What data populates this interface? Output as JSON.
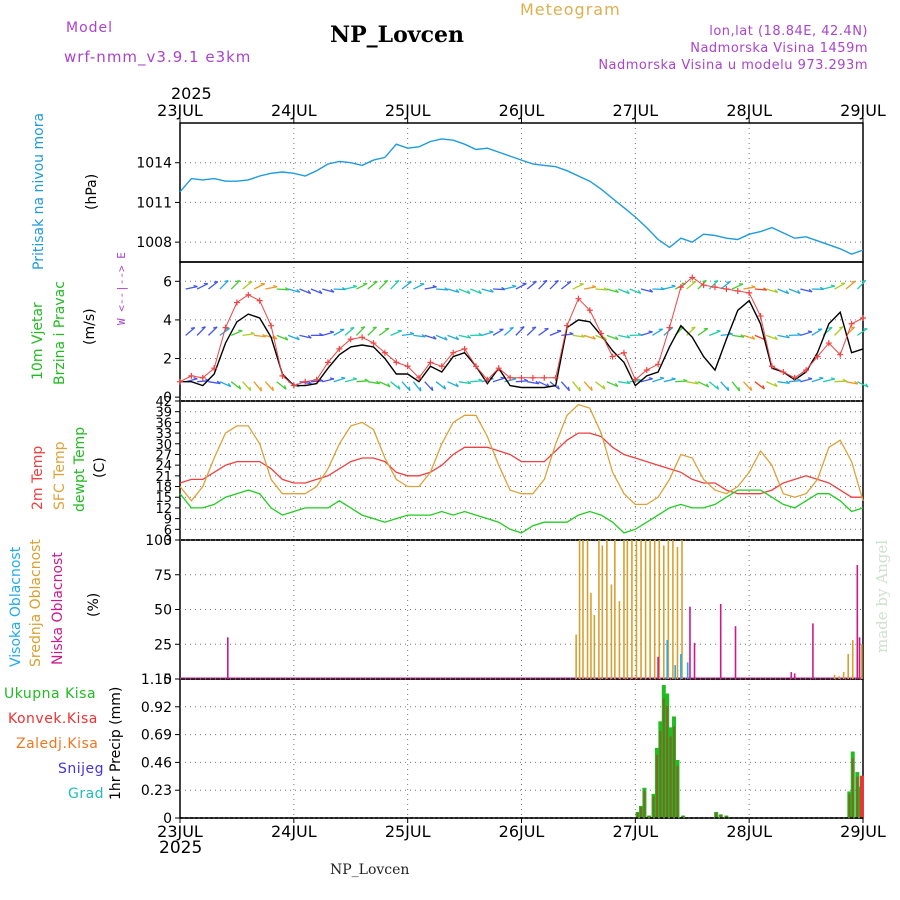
{
  "header": {
    "model_label": "Model",
    "model_name": "wrf-nmm_v3.9.1  e3km",
    "station": "NP_Lovcen",
    "product": "Meteogram",
    "lonlat": "lon,lat (18.84E, 42.4N)",
    "altitude": "Nadmorska Visina 1459m",
    "model_altitude": "Nadmorska Visina u modelu 973.293m",
    "footer_station": "NP_Lovcen",
    "credit": "made by Angel",
    "year_top": "2025",
    "year_bottom": "2025"
  },
  "colors": {
    "pressure": "#1e9bdc",
    "temp2m": "#ee4040",
    "sfc": "#dca33c",
    "dewpt": "#22cc22",
    "high_cloud": "#22aaee",
    "mid_cloud": "#d8a030",
    "low_cloud": "#cc1a8c",
    "total_precip": "#22bb22",
    "conv_precip": "#ee3333",
    "frozen_precip": "#ee7722",
    "snow": "#4433dd",
    "graupel": "#22bbbb",
    "purple_text": "#aa44cc"
  },
  "panel_labels": {
    "pressure": {
      "title": "Pritisak na nivou mora",
      "unit": "(hPa)"
    },
    "wind": {
      "line1": "10m Vjetar",
      "line2": "Brzina i Pravac",
      "unit": "(m/s)",
      "compass": "W <--|--> E"
    },
    "temp": {
      "t2m": "2m Temp",
      "sfc": "SFC Temp",
      "dew": "dewpt Temp",
      "unit": "(C)"
    },
    "cloud": {
      "high": "Visoka Oblacnost",
      "mid": "Srednja Oblacnost",
      "low": "Niska Oblacnost",
      "unit": "(%)"
    },
    "precip": {
      "unit": "1hr Precip (mm)",
      "legend": [
        "Ukupna Kisa",
        "Konvek.Kisa",
        "Zaledj.Kisa",
        "Snijeg",
        "Grad"
      ]
    }
  },
  "chart_data": [
    {
      "type": "line",
      "title": "Pritisak na nivou mora",
      "ylabel": "(hPa)",
      "ylim": [
        1006.5,
        1017
      ],
      "yticks": [
        "1008",
        "1011",
        "1014"
      ],
      "x_categories": [
        "23JUL",
        "24JUL",
        "25JUL",
        "26JUL",
        "27JUL",
        "28JUL",
        "29JUL"
      ],
      "x": [
        0,
        0.1,
        0.2,
        0.3,
        0.4,
        0.5,
        0.6,
        0.7,
        0.8,
        0.9,
        1.0,
        1.1,
        1.2,
        1.3,
        1.4,
        1.5,
        1.6,
        1.7,
        1.8,
        1.9,
        2.0,
        2.1,
        2.2,
        2.3,
        2.4,
        2.5,
        2.6,
        2.7,
        2.8,
        2.9,
        3.0,
        3.1,
        3.2,
        3.3,
        3.4,
        3.5,
        3.6,
        3.7,
        3.8,
        3.9,
        4.0,
        4.1,
        4.2,
        4.3,
        4.4,
        4.5,
        4.6,
        4.7,
        4.8,
        4.9,
        5.0,
        5.1,
        5.2,
        5.3,
        5.4,
        5.5,
        5.6,
        5.7,
        5.8,
        5.9,
        6.0
      ],
      "series": [
        {
          "name": "MSLP",
          "values": [
            1011.8,
            1012.8,
            1012.7,
            1012.8,
            1012.6,
            1012.6,
            1012.7,
            1013.0,
            1013.2,
            1013.3,
            1013.2,
            1013.0,
            1013.4,
            1013.9,
            1014.1,
            1014.0,
            1013.8,
            1014.2,
            1014.4,
            1015.4,
            1015.1,
            1015.2,
            1015.6,
            1015.8,
            1015.7,
            1015.4,
            1015.0,
            1015.1,
            1014.8,
            1014.5,
            1014.2,
            1013.9,
            1013.8,
            1013.7,
            1013.4,
            1013.0,
            1012.6,
            1012.0,
            1011.3,
            1010.6,
            1009.9,
            1009.1,
            1008.2,
            1007.6,
            1008.3,
            1008.0,
            1008.6,
            1008.5,
            1008.3,
            1008.2,
            1008.6,
            1008.8,
            1009.1,
            1008.7,
            1008.3,
            1008.4,
            1008.1,
            1007.8,
            1007.5,
            1007.1,
            1007.4
          ]
        }
      ]
    },
    {
      "type": "line",
      "title": "10m Vjetar Brzina i Pravac",
      "ylabel": "(m/s)",
      "ylim": [
        -0.2,
        7
      ],
      "yticks": [
        "0",
        "2",
        "4",
        "6"
      ],
      "x_categories": [
        "23JUL",
        "24JUL",
        "25JUL",
        "26JUL",
        "27JUL",
        "28JUL",
        "29JUL"
      ],
      "x": [
        0,
        0.1,
        0.2,
        0.3,
        0.4,
        0.5,
        0.6,
        0.7,
        0.8,
        0.9,
        1.0,
        1.1,
        1.2,
        1.3,
        1.4,
        1.5,
        1.6,
        1.7,
        1.8,
        1.9,
        2.0,
        2.1,
        2.2,
        2.3,
        2.4,
        2.5,
        2.6,
        2.7,
        2.8,
        2.9,
        3.0,
        3.1,
        3.2,
        3.3,
        3.4,
        3.5,
        3.6,
        3.7,
        3.8,
        3.9,
        4.0,
        4.1,
        4.2,
        4.3,
        4.4,
        4.5,
        4.6,
        4.7,
        4.8,
        4.9,
        5.0,
        5.1,
        5.2,
        5.3,
        5.4,
        5.5,
        5.6,
        5.7,
        5.8,
        5.9,
        6.0
      ],
      "series": [
        {
          "name": "Brzina (model)",
          "values": [
            0.8,
            0.8,
            0.6,
            1.2,
            2.8,
            3.9,
            4.3,
            4.1,
            3.1,
            1.2,
            0.6,
            0.6,
            0.7,
            1.5,
            2.2,
            2.6,
            2.7,
            2.6,
            2.0,
            1.2,
            1.2,
            0.8,
            1.6,
            1.3,
            2.1,
            2.3,
            1.6,
            0.7,
            1.5,
            0.6,
            0.5,
            0.5,
            0.5,
            0.6,
            3.6,
            4.0,
            3.9,
            3.2,
            2.4,
            1.8,
            0.6,
            1.1,
            1.3,
            2.6,
            3.7,
            3.1,
            2.1,
            1.4,
            3.0,
            4.5,
            5.0,
            3.8,
            1.5,
            1.3,
            0.9,
            1.3,
            2.3,
            3.8,
            4.4,
            2.3,
            2.5
          ]
        },
        {
          "name": "Udari (+)",
          "values": [
            0.8,
            1.1,
            1.0,
            1.5,
            3.6,
            4.9,
            5.3,
            5.0,
            3.7,
            1.1,
            0.6,
            0.8,
            0.9,
            1.8,
            2.5,
            3.0,
            3.1,
            2.8,
            2.3,
            1.8,
            1.6,
            1.0,
            1.8,
            1.6,
            2.3,
            2.5,
            1.6,
            0.9,
            1.5,
            1.0,
            1.0,
            1.0,
            1.0,
            1.0,
            3.7,
            5.1,
            4.5,
            3.3,
            2.1,
            2.3,
            0.9,
            1.4,
            1.7,
            3.6,
            5.7,
            6.2,
            5.8,
            5.7,
            5.6,
            5.5,
            5.4,
            4.2,
            1.6,
            1.3,
            1.0,
            1.4,
            2.1,
            2.8,
            2.2,
            3.8,
            4.1
          ]
        }
      ],
      "wind_rows": [
        "5.6",
        "3.2",
        "0.8"
      ]
    },
    {
      "type": "line",
      "title": "2m Temp / SFC Temp / dewpt Temp",
      "ylabel": "(C)",
      "ylim": [
        3,
        42
      ],
      "yticks": [
        "3",
        "6",
        "9",
        "12",
        "15",
        "18",
        "21",
        "24",
        "27",
        "30",
        "33",
        "36",
        "39",
        "42"
      ],
      "x_categories": [
        "23JUL",
        "24JUL",
        "25JUL",
        "26JUL",
        "27JUL",
        "28JUL",
        "29JUL"
      ],
      "x": [
        0,
        0.1,
        0.2,
        0.3,
        0.4,
        0.5,
        0.6,
        0.7,
        0.8,
        0.9,
        1.0,
        1.1,
        1.2,
        1.3,
        1.4,
        1.5,
        1.6,
        1.7,
        1.8,
        1.9,
        2.0,
        2.1,
        2.2,
        2.3,
        2.4,
        2.5,
        2.6,
        2.7,
        2.8,
        2.9,
        3.0,
        3.1,
        3.2,
        3.3,
        3.4,
        3.5,
        3.6,
        3.7,
        3.8,
        3.9,
        4.0,
        4.1,
        4.2,
        4.3,
        4.4,
        4.5,
        4.6,
        4.7,
        4.8,
        4.9,
        5.0,
        5.1,
        5.2,
        5.3,
        5.4,
        5.5,
        5.6,
        5.7,
        5.8,
        5.9,
        6.0
      ],
      "series": [
        {
          "name": "2m Temp",
          "values": [
            19,
            20,
            20,
            22,
            24,
            25,
            25,
            25,
            23,
            20,
            19,
            19,
            20,
            21,
            23,
            25,
            26,
            26,
            25,
            22,
            21,
            21,
            22,
            24,
            27,
            29,
            29,
            29,
            28,
            27,
            25,
            25,
            25,
            28,
            31,
            33,
            33,
            32,
            29,
            27,
            26,
            25,
            24,
            23,
            22,
            20,
            19,
            19,
            17,
            16,
            16,
            16,
            17,
            19,
            20,
            21,
            20,
            19,
            17,
            15,
            15
          ]
        },
        {
          "name": "SFC Temp",
          "values": [
            18,
            14,
            18,
            26,
            33,
            35,
            35,
            30,
            20,
            16,
            16,
            16,
            18,
            23,
            30,
            35,
            36,
            34,
            26,
            20,
            18,
            18,
            22,
            30,
            36,
            38,
            38,
            32,
            24,
            17,
            16,
            16,
            20,
            30,
            38,
            41,
            40,
            33,
            22,
            16,
            13,
            13,
            15,
            20,
            27,
            26,
            20,
            17,
            16,
            18,
            22,
            28,
            24,
            16,
            15,
            16,
            20,
            29,
            31,
            25,
            14
          ]
        },
        {
          "name": "dewpt Temp",
          "values": [
            16,
            12,
            12,
            13,
            15,
            16,
            17,
            16,
            12,
            10,
            11,
            12,
            12,
            12,
            14,
            12,
            10,
            9,
            8,
            9,
            10,
            10,
            10,
            11,
            10,
            11,
            10,
            9,
            8,
            6,
            5,
            7,
            8,
            8,
            8,
            10,
            11,
            10,
            8,
            5,
            6,
            8,
            10,
            12,
            13,
            12,
            12,
            13,
            15,
            17,
            17,
            17,
            15,
            13,
            12,
            14,
            16,
            16,
            14,
            11,
            12
          ]
        }
      ]
    },
    {
      "type": "bar",
      "title": "Visoka / Srednja / Niska Oblacnost",
      "ylabel": "(%)",
      "ylim": [
        0,
        100
      ],
      "yticks": [
        "0",
        "25",
        "50",
        "75",
        "100"
      ],
      "x_categories": [
        "23JUL",
        "24JUL",
        "25JUL",
        "26JUL",
        "27JUL",
        "28JUL",
        "29JUL"
      ],
      "series": [
        {
          "name": "Srednja Oblacnost",
          "x": [
            3.48,
            3.51,
            3.54,
            3.58,
            3.61,
            3.64,
            3.68,
            3.71,
            3.75,
            3.79,
            3.82,
            3.86,
            3.9,
            3.93,
            3.97,
            4.01,
            4.05,
            4.09,
            4.13,
            4.17,
            4.21,
            4.25,
            4.29,
            4.33,
            4.37,
            4.41,
            5.75,
            5.79,
            5.83,
            5.87,
            5.91,
            5.95,
            5.99
          ],
          "values": [
            32,
            100,
            100,
            100,
            62,
            46,
            100,
            96,
            100,
            68,
            100,
            56,
            100,
            100,
            100,
            100,
            100,
            100,
            100,
            100,
            100,
            96,
            100,
            100,
            95,
            100,
            3,
            2,
            5,
            18,
            28,
            45,
            25
          ]
        },
        {
          "name": "Niska Oblacnost",
          "x": [
            0.42,
            4.2,
            4.48,
            4.52,
            4.75,
            4.88,
            5.37,
            5.4,
            5.56,
            5.95,
            5.97
          ],
          "values": [
            30,
            16,
            52,
            26,
            54,
            38,
            5,
            4,
            40,
            82,
            30
          ]
        },
        {
          "name": "Visoka Oblacnost",
          "x": [
            4.28,
            4.35,
            4.4,
            4.46
          ],
          "values": [
            28,
            10,
            18,
            12
          ]
        }
      ]
    },
    {
      "type": "bar",
      "title": "1hr Precip",
      "ylabel": "1hr Precip (mm)",
      "ylim": [
        0,
        1.15
      ],
      "yticks": [
        "0",
        "0.23",
        "0.46",
        "0.69",
        "0.92",
        "1.15"
      ],
      "x_categories": [
        "23JUL",
        "24JUL",
        "25JUL",
        "26JUL",
        "27JUL",
        "28JUL",
        "29JUL"
      ],
      "series": [
        {
          "name": "Ukupna Kisa",
          "x": [
            4.02,
            4.05,
            4.08,
            4.12,
            4.16,
            4.19,
            4.22,
            4.25,
            4.28,
            4.31,
            4.34,
            4.37,
            4.42,
            4.71,
            4.75,
            4.8,
            5.88,
            5.91,
            5.95,
            5.98
          ],
          "values": [
            0.05,
            0.1,
            0.25,
            0.02,
            0.2,
            0.58,
            0.8,
            1.1,
            1.03,
            0.75,
            0.84,
            0.48,
            0.02,
            0.05,
            0.03,
            0.02,
            0.22,
            0.55,
            0.38,
            0.26
          ]
        },
        {
          "name": "Konvek.Kisa",
          "x": [
            5.99
          ],
          "values": [
            0.35
          ]
        }
      ]
    }
  ]
}
